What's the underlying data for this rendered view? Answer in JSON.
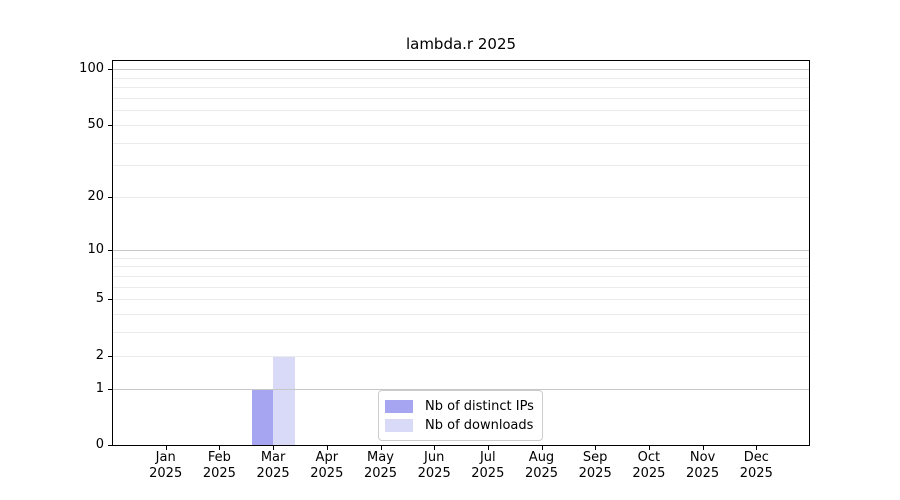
{
  "chart_data": {
    "type": "bar",
    "title": "lambda.r 2025",
    "categories": [
      "Jan 2025",
      "Feb 2025",
      "Mar 2025",
      "Apr 2025",
      "May 2025",
      "Jun 2025",
      "Jul 2025",
      "Aug 2025",
      "Sep 2025",
      "Oct 2025",
      "Nov 2025",
      "Dec 2025"
    ],
    "series": [
      {
        "name": "Nb of distinct IPs",
        "color": "#a5a5f2",
        "values": [
          0,
          0,
          1,
          0,
          0,
          0,
          0,
          0,
          0,
          0,
          0,
          0
        ]
      },
      {
        "name": "Nb of downloads",
        "color": "#d9d9f8",
        "values": [
          0,
          0,
          2,
          0,
          0,
          0,
          0,
          0,
          0,
          0,
          0,
          0
        ]
      }
    ],
    "yscale": "log1p",
    "ylim": [
      0,
      112
    ],
    "y_tick_values": [
      0,
      1,
      2,
      5,
      10,
      20,
      50,
      100
    ],
    "y_major_gridlines": [
      1,
      10,
      100
    ],
    "y_minor_gridlines": [
      2,
      3,
      4,
      5,
      6,
      7,
      8,
      9,
      20,
      30,
      40,
      50,
      60,
      70,
      80,
      90
    ],
    "grid": "horizontal-only",
    "legend_position": "bottom-center-inside",
    "colors": {
      "grid_major": "#c7c7c7",
      "grid_minor": "#ebebeb",
      "spine": "#000000",
      "text": "#000000",
      "legend_border": "#cccccc",
      "background": "#ffffff"
    }
  }
}
